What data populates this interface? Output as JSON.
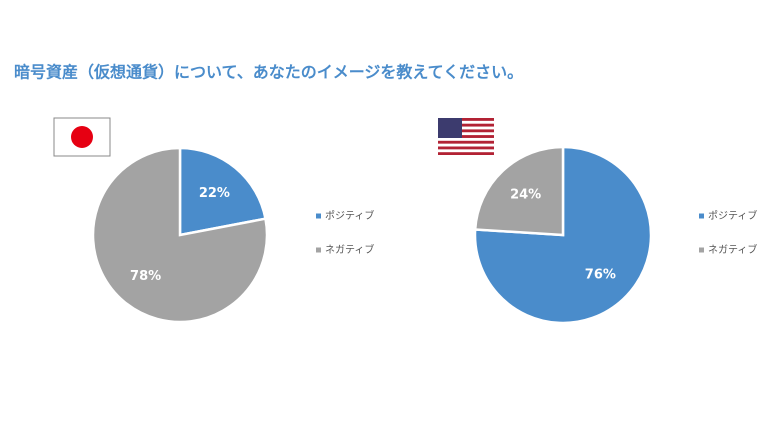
{
  "title": "暗号資産（仮想通貨）について、あなたのイメージを教えてください。",
  "chart_data": [
    {
      "type": "pie",
      "categories": [
        "ポジティブ",
        "ネガティブ"
      ],
      "values": [
        22,
        78
      ],
      "value_labels": [
        "22%",
        "78%"
      ],
      "colors": [
        "#4a8ccb",
        "#a3a3a3"
      ]
    },
    {
      "type": "pie",
      "categories": [
        "ポジティブ",
        "ネガティブ"
      ],
      "values": [
        76,
        24
      ],
      "value_labels": [
        "76%",
        "24%"
      ],
      "colors": [
        "#4a8ccb",
        "#a3a3a3"
      ]
    }
  ]
}
